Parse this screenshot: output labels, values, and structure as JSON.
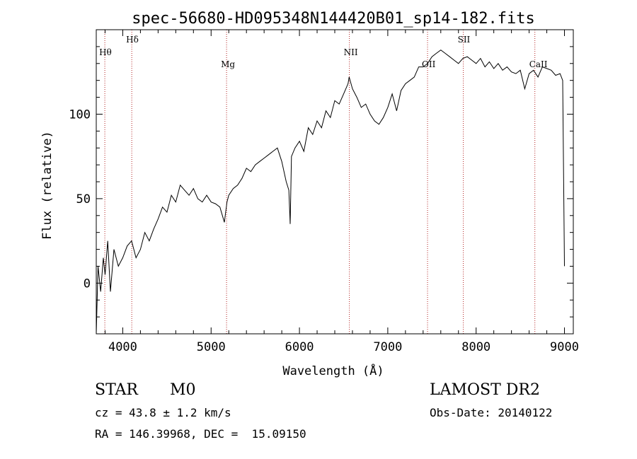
{
  "chart_data": {
    "type": "line",
    "title": "spec-56680-HD095348N144420B01_sp14-182.fits",
    "xlabel": "Wavelength (Å)",
    "ylabel": "Flux (relative)",
    "xlim": [
      3700,
      9100
    ],
    "ylim": [
      -30,
      150
    ],
    "x_ticks": [
      4000,
      5000,
      6000,
      7000,
      8000,
      9000
    ],
    "y_ticks": [
      0,
      50,
      100
    ],
    "grid": false,
    "series": [
      {
        "x": [
          3700,
          3720,
          3750,
          3780,
          3800,
          3830,
          3860,
          3900,
          3950,
          4000,
          4050,
          4100,
          4150,
          4200,
          4250,
          4300,
          4350,
          4400,
          4450,
          4500,
          4550,
          4600,
          4650,
          4700,
          4750,
          4800,
          4850,
          4900,
          4950,
          5000,
          5050,
          5100,
          5150,
          5180,
          5200,
          5250,
          5300,
          5350,
          5400,
          5450,
          5500,
          5550,
          5600,
          5650,
          5700,
          5750,
          5800,
          5850,
          5880,
          5895,
          5910,
          5950,
          6000,
          6050,
          6100,
          6150,
          6200,
          6250,
          6300,
          6350,
          6400,
          6450,
          6500,
          6550,
          6563,
          6600,
          6650,
          6700,
          6750,
          6800,
          6850,
          6900,
          6950,
          7000,
          7050,
          7100,
          7150,
          7200,
          7250,
          7300,
          7350,
          7400,
          7450,
          7500,
          7550,
          7600,
          7650,
          7700,
          7750,
          7800,
          7850,
          7900,
          7950,
          8000,
          8050,
          8100,
          8150,
          8200,
          8250,
          8300,
          8350,
          8400,
          8450,
          8500,
          8550,
          8600,
          8650,
          8700,
          8750,
          8800,
          8850,
          8900,
          8950,
          8980,
          9000
        ],
        "y": [
          -30,
          10,
          -5,
          15,
          5,
          25,
          -5,
          20,
          10,
          15,
          22,
          25,
          15,
          20,
          30,
          25,
          32,
          38,
          45,
          42,
          52,
          48,
          58,
          55,
          52,
          56,
          50,
          48,
          52,
          48,
          47,
          45,
          36,
          48,
          52,
          56,
          58,
          62,
          68,
          66,
          70,
          72,
          74,
          76,
          78,
          80,
          72,
          60,
          55,
          35,
          75,
          80,
          84,
          78,
          92,
          88,
          96,
          92,
          102,
          98,
          108,
          106,
          112,
          118,
          122,
          115,
          110,
          104,
          106,
          100,
          96,
          94,
          98,
          104,
          112,
          102,
          114,
          118,
          120,
          122,
          128,
          128,
          130,
          134,
          136,
          138,
          136,
          134,
          132,
          130,
          133,
          134,
          132,
          130,
          133,
          128,
          131,
          127,
          130,
          126,
          128,
          125,
          124,
          126,
          115,
          124,
          126,
          122,
          128,
          127,
          126,
          123,
          124,
          120,
          10
        ]
      }
    ],
    "annotations": [
      {
        "label": "Hθ",
        "x": 3797
      },
      {
        "label": "Hδ",
        "x": 4102
      },
      {
        "label": "Mg",
        "x": 5175
      },
      {
        "label": "NII",
        "x": 6565
      },
      {
        "label": "OII",
        "x": 7450
      },
      {
        "label": "SII",
        "x": 7855
      },
      {
        "label": "CaII",
        "x": 8665
      }
    ]
  },
  "info": {
    "obj_class": "STAR",
    "subclass": "M0",
    "survey": "LAMOST DR2",
    "cz": "cz = 43.8 ± 1.2 km/s",
    "obs_date": "Obs-Date: 20140122",
    "radec": "RA = 146.39968, DEC =  15.09150"
  },
  "colors": {
    "spectrum": "#000000",
    "annotation_line": "#b22222",
    "axes": "#000000"
  }
}
